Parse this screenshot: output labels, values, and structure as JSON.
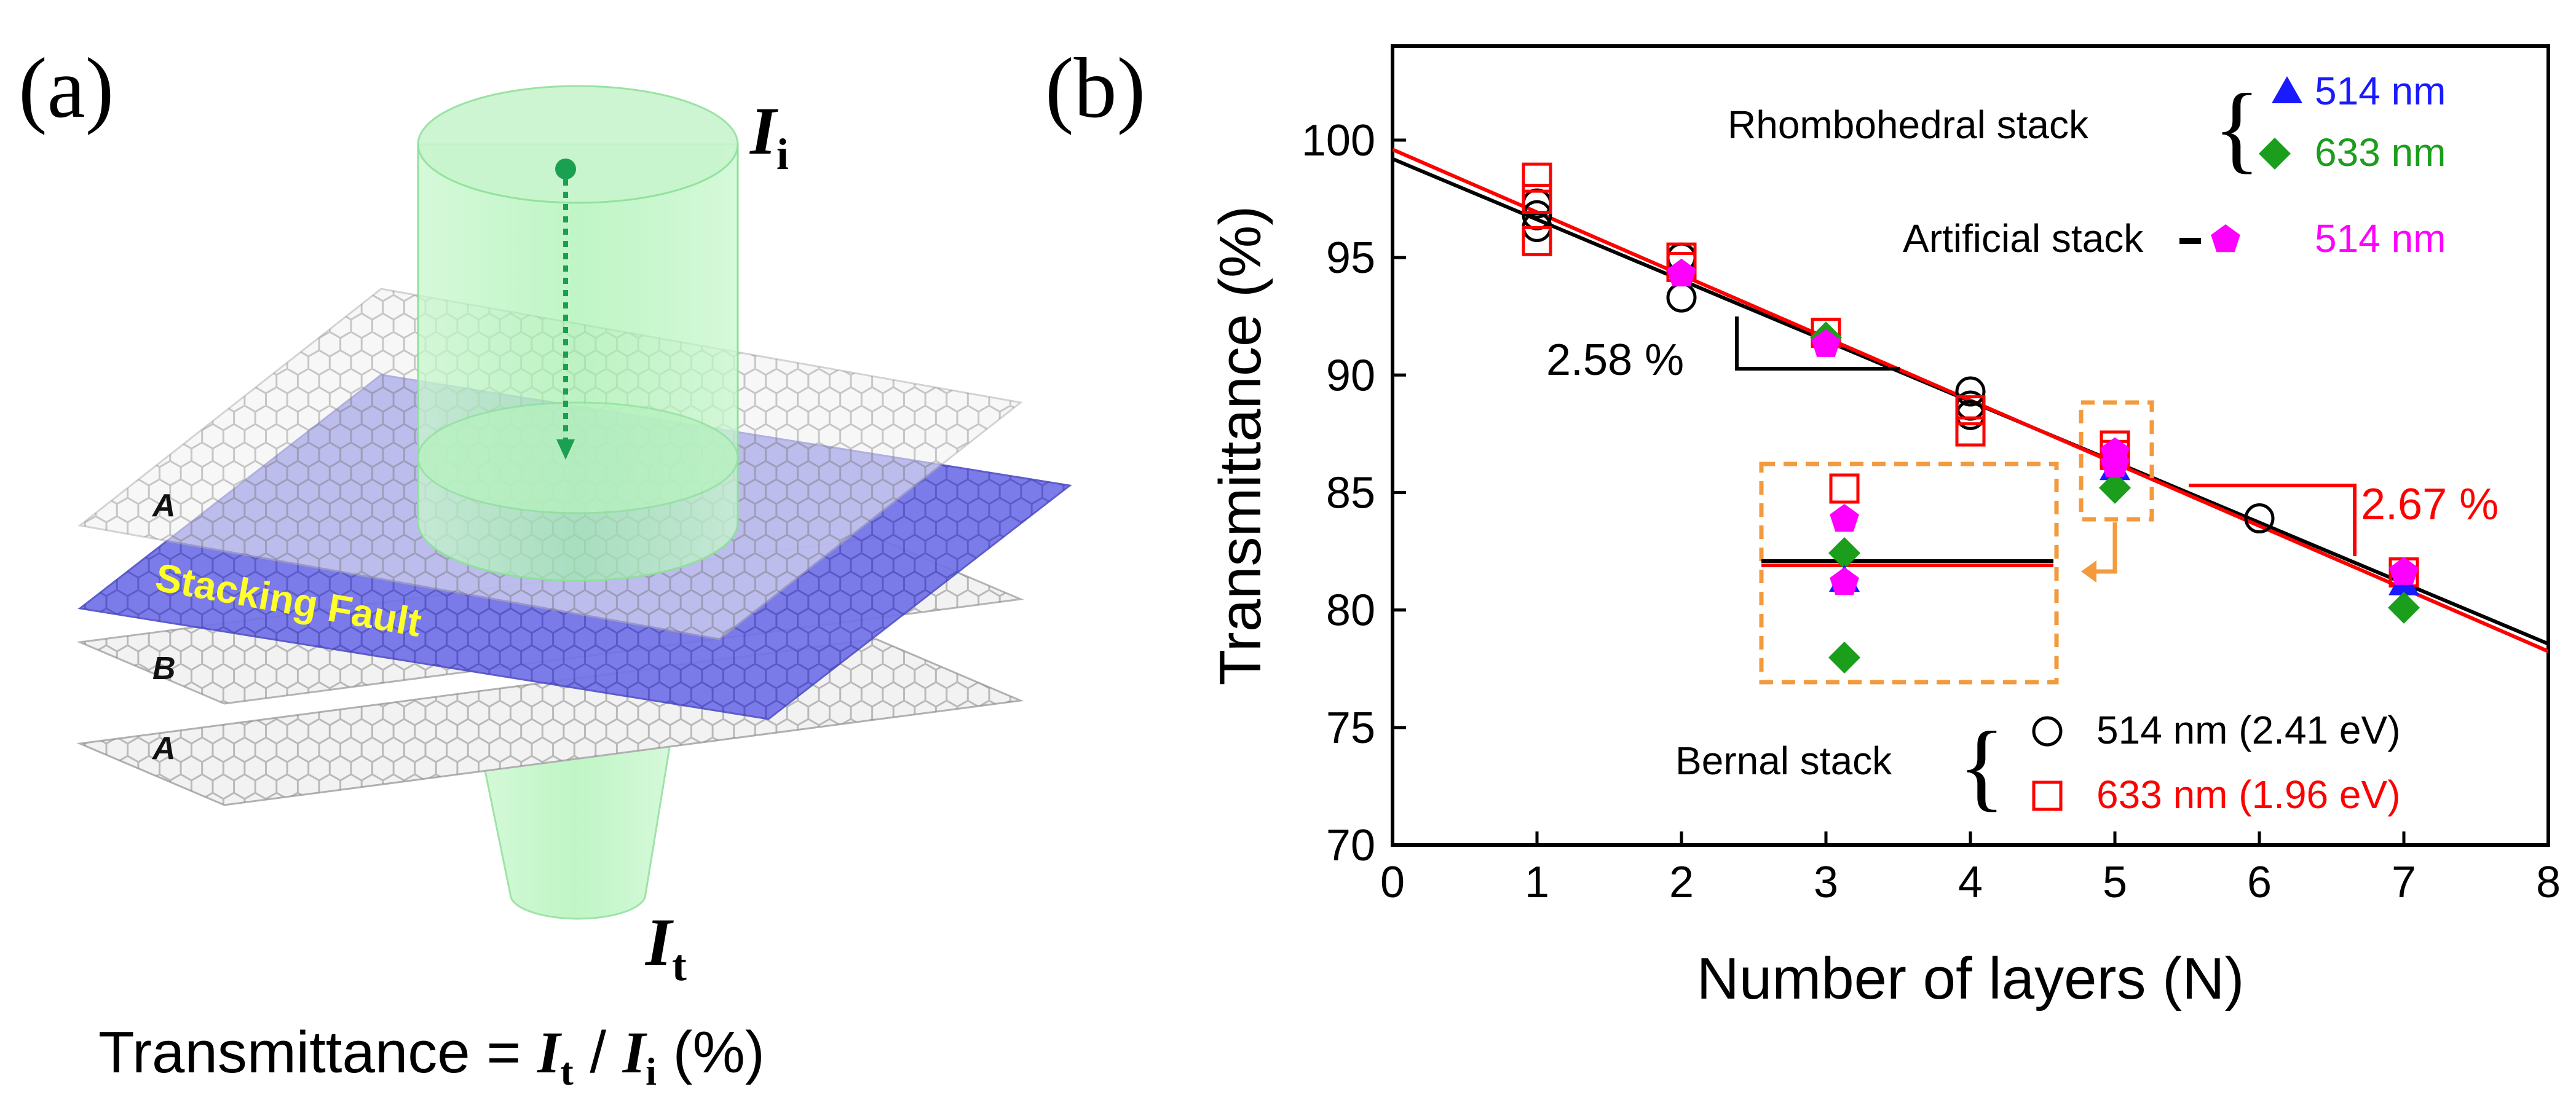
{
  "panel_a": {
    "label": "(a)",
    "incident": {
      "main": "I",
      "sub": "i"
    },
    "transmitted": {
      "main": "I",
      "sub": "t"
    },
    "layer_labels": [
      "A",
      "B",
      "A"
    ],
    "stacking_fault": "Stacking Fault",
    "formula": {
      "lhs": "Transmittance = ",
      "num": "I",
      "num_sub": "t",
      "sep": " / ",
      "den": "I",
      "den_sub": "i",
      "unit": " (%)"
    },
    "colors": {
      "beam": "#9ef0a8",
      "fault_sheet": "#6b6be0",
      "fault_text": "#ffff2a",
      "arrow": "#1aa050"
    }
  },
  "panel_b": {
    "label": "(b)",
    "legend": {
      "rhombohedral": {
        "title": "Rhombohedral stack",
        "entries": [
          {
            "label": "514 nm",
            "color": "#1a1aff",
            "marker": "triangle"
          },
          {
            "label": "633 nm",
            "color": "#1b9e1b",
            "marker": "diamond"
          }
        ]
      },
      "artificial": {
        "title": "Artificial stack",
        "entries": [
          {
            "label": "514 nm",
            "color": "#ff00ff",
            "marker": "pentagon"
          }
        ]
      },
      "bernal": {
        "title": "Bernal stack",
        "entries": [
          {
            "label": "514 nm (2.41 eV)",
            "color": "#000000",
            "marker": "circle"
          },
          {
            "label": "633 nm (1.96 eV)",
            "color": "#ff0000",
            "marker": "square"
          }
        ]
      }
    },
    "annotations": {
      "slope_black": "2.58 %",
      "slope_red": "2.67 %"
    },
    "colors": {
      "fit_black": "#000000",
      "fit_red": "#ff0000",
      "inset_box": "#f39a3c"
    }
  },
  "chart_data": {
    "type": "scatter",
    "xlabel": "Number of layers (N)",
    "ylabel": "Transmittance (%)",
    "xlim": [
      0,
      8
    ],
    "ylim": [
      70,
      104
    ],
    "xticks": [
      0,
      1,
      2,
      3,
      4,
      5,
      6,
      7,
      8
    ],
    "yticks": [
      70,
      75,
      80,
      85,
      90,
      95,
      100
    ],
    "fit_lines": [
      {
        "name": "514 nm (2.41 eV)",
        "color": "#000000",
        "intercept": 99.2,
        "slope": -2.58
      },
      {
        "name": "633 nm (1.96 eV)",
        "color": "#ff0000",
        "intercept": 99.6,
        "slope": -2.67
      }
    ],
    "series": [
      {
        "name": "Bernal stack 514 nm (2.41 eV)",
        "marker": "circle",
        "color": "#000000",
        "points": [
          [
            1,
            97.3
          ],
          [
            1,
            96.8
          ],
          [
            1,
            96.3
          ],
          [
            2,
            95.0
          ],
          [
            2,
            93.3
          ],
          [
            4,
            89.3
          ],
          [
            4,
            88.7
          ],
          [
            4,
            88.3
          ],
          [
            6,
            83.9
          ]
        ]
      },
      {
        "name": "Bernal stack 633 nm (1.96 eV)",
        "marker": "square",
        "color": "#ff0000",
        "points": [
          [
            1,
            98.4
          ],
          [
            1,
            97.5
          ],
          [
            1,
            95.7
          ],
          [
            2,
            95.0
          ],
          [
            2,
            94.6
          ],
          [
            3,
            91.8
          ],
          [
            4,
            88.5
          ],
          [
            4,
            87.6
          ],
          [
            5,
            87.0
          ],
          [
            5,
            86.6
          ],
          [
            7,
            81.6
          ]
        ]
      },
      {
        "name": "Rhombohedral stack 514 nm",
        "marker": "triangle",
        "color": "#1a1aff",
        "points": [
          [
            5,
            86.0
          ],
          [
            7,
            81.1
          ]
        ]
      },
      {
        "name": "Rhombohedral stack 633 nm",
        "marker": "diamond",
        "color": "#1b9e1b",
        "points": [
          [
            3,
            91.6
          ],
          [
            5,
            85.2
          ],
          [
            7,
            80.1
          ]
        ]
      },
      {
        "name": "Artificial stack 514 nm",
        "marker": "pentagon",
        "color": "#ff00ff",
        "points": [
          [
            2,
            94.3
          ],
          [
            3,
            91.3
          ],
          [
            5,
            86.7
          ],
          [
            5,
            86.2
          ],
          [
            7,
            81.6
          ]
        ]
      }
    ]
  }
}
